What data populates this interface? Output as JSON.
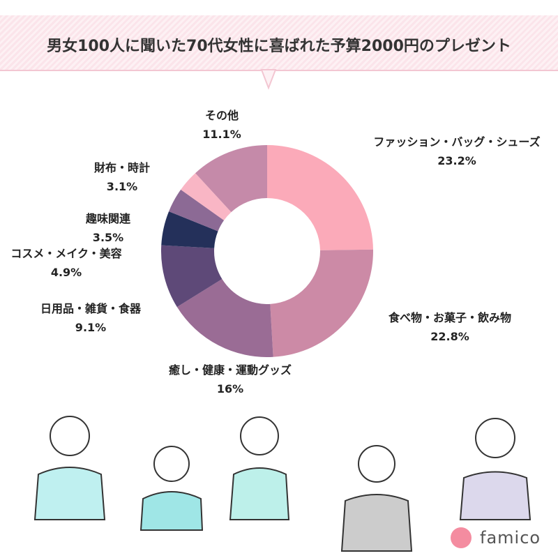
{
  "chart_data": {
    "type": "pie",
    "title": "男女100人に聞いた70代女性に喜ばれた予算2000円のプレゼント",
    "categories": [
      "ファッション・バッグ・シューズ",
      "食べ物・お菓子・飲み物",
      "癒し・健康・運動グッズ",
      "日用品・雑貨・食器",
      "コスメ・メイク・美容",
      "趣味関連",
      "財布・時計",
      "その他"
    ],
    "values": [
      23.2,
      22.8,
      16,
      9.1,
      4.9,
      3.5,
      3.1,
      11.1
    ],
    "value_labels": [
      "23.2%",
      "22.8%",
      "16%",
      "9.1%",
      "4.9%",
      "3.5%",
      "3.1%",
      "11.1%"
    ],
    "colors": [
      "#fbaab9",
      "#cc8aa6",
      "#9a6c95",
      "#5e4978",
      "#24305a",
      "#8c6a95",
      "#f9b6c5",
      "#c58aa9"
    ]
  },
  "logo": "famico"
}
